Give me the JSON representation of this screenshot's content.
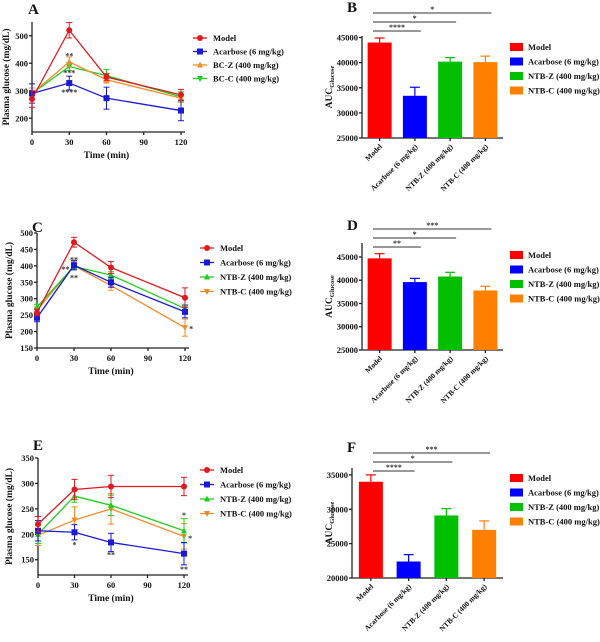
{
  "figure": {
    "colors": {
      "line_model": "#e0191f",
      "line_acarbose": "#1a1ad6",
      "line_orange": "#f08c2a",
      "line_green": "#1fcf1f",
      "bar_model": "#ff0000",
      "bar_acarbose": "#0000ff",
      "bar_ntbz": "#00c000",
      "bar_ntbc": "#ff8000"
    }
  },
  "chart_data": [
    {
      "id": "A",
      "panel_label": "A",
      "type": "line",
      "xlabel": "Time (min)",
      "ylabel": "Plasma glucose (mg/dL)",
      "x": [
        0,
        30,
        60,
        120
      ],
      "xticks": [
        0,
        30,
        60,
        90,
        120
      ],
      "xlim": [
        0,
        120
      ],
      "yticks": [
        200,
        300,
        400,
        500
      ],
      "ylim": [
        150,
        550
      ],
      "legend_position": "right",
      "series": [
        {
          "name": "Model",
          "color_key": "line_model",
          "marker": "circle",
          "values": [
            270,
            520,
            350,
            285
          ],
          "errors": [
            30,
            28,
            12,
            20
          ]
        },
        {
          "name": "Acarbose (6 mg/kg)",
          "color_key": "line_acarbose",
          "marker": "square",
          "values": [
            290,
            328,
            273,
            228
          ],
          "errors": [
            35,
            25,
            40,
            37
          ]
        },
        {
          "name": "BC-Z (400 mg/kg)",
          "color_key": "line_orange",
          "marker": "triangle-up",
          "values": [
            290,
            405,
            340,
            273
          ],
          "errors": [
            20,
            18,
            12,
            15
          ]
        },
        {
          "name": "BC-C (400 mg/kg)",
          "color_key": "line_green",
          "marker": "triangle-down",
          "values": [
            290,
            388,
            355,
            278
          ],
          "errors": [
            20,
            15,
            22,
            18
          ]
        }
      ],
      "annotations": [
        {
          "text": "**",
          "x": 30,
          "y": 428
        },
        {
          "text": "***",
          "x": 30,
          "y": 366
        },
        {
          "text": "****",
          "x": 30,
          "y": 295
        }
      ]
    },
    {
      "id": "B",
      "panel_label": "B",
      "type": "bar",
      "ylabel_main": "AUC",
      "ylabel_sub": "Glucose",
      "categories": [
        "Model",
        "Acarbose (6 mg/kg)",
        "NTB-Z (400 mg/kg)",
        "NTB-C (400 mg/kg)"
      ],
      "values": [
        44000,
        33400,
        40200,
        40100
      ],
      "errors": [
        900,
        1700,
        800,
        1200
      ],
      "color_keys": [
        "bar_model",
        "bar_acarbose",
        "bar_ntbz",
        "bar_ntbc"
      ],
      "yticks": [
        25000,
        30000,
        35000,
        40000,
        45000
      ],
      "ylim": [
        25000,
        45300
      ],
      "legend_position": "right",
      "significance": [
        {
          "from": 0,
          "to": 1,
          "text": "****"
        },
        {
          "from": 0,
          "to": 2,
          "text": "*"
        },
        {
          "from": 0,
          "to": 3,
          "text": "*"
        }
      ]
    },
    {
      "id": "C",
      "panel_label": "C",
      "type": "line",
      "xlabel": "Time (min)",
      "ylabel": "Plasma glucose (mg/dL)",
      "x": [
        0,
        30,
        60,
        120
      ],
      "xticks": [
        0,
        30,
        60,
        90,
        120
      ],
      "xlim": [
        0,
        120
      ],
      "yticks": [
        150,
        200,
        250,
        300,
        350,
        400,
        450,
        500
      ],
      "ylim": [
        150,
        500
      ],
      "legend_position": "right",
      "series": [
        {
          "name": "Model",
          "color_key": "line_model",
          "marker": "circle",
          "values": [
            258,
            472,
            395,
            303
          ],
          "errors": [
            10,
            15,
            18,
            30
          ]
        },
        {
          "name": "Acarbose (6 mg/kg)",
          "color_key": "line_acarbose",
          "marker": "square",
          "values": [
            242,
            402,
            350,
            260
          ],
          "errors": [
            12,
            14,
            15,
            18
          ]
        },
        {
          "name": "NTB-Z (400 mg/kg)",
          "color_key": "line_green",
          "marker": "triangle-up",
          "values": [
            275,
            398,
            372,
            270
          ],
          "errors": [
            8,
            10,
            10,
            12
          ]
        },
        {
          "name": "NTB-C (400 mg/kg)",
          "color_key": "line_orange",
          "marker": "triangle-down",
          "values": [
            265,
            400,
            340,
            212
          ],
          "errors": [
            10,
            12,
            14,
            26
          ]
        }
      ],
      "annotations": [
        {
          "text": "**",
          "x": 30,
          "y": 420
        },
        {
          "text": "**",
          "x": 23,
          "y": 390
        },
        {
          "text": "**",
          "x": 30,
          "y": 365
        },
        {
          "text": "*",
          "x": 125,
          "y": 210
        }
      ]
    },
    {
      "id": "D",
      "panel_label": "D",
      "type": "bar",
      "ylabel_main": "AUC",
      "ylabel_sub": "Glucose",
      "categories": [
        "Model",
        "Acarbose (6 mg/kg)",
        "NTB-Z (400 mg/kg)",
        "NTB-C (400 mg/kg)"
      ],
      "values": [
        44700,
        39600,
        40800,
        37800
      ],
      "errors": [
        1000,
        800,
        900,
        900
      ],
      "color_keys": [
        "bar_model",
        "bar_acarbose",
        "bar_ntbz",
        "bar_ntbc"
      ],
      "yticks": [
        25000,
        30000,
        35000,
        40000,
        45000
      ],
      "ylim": [
        25000,
        48000
      ],
      "legend_position": "right",
      "significance": [
        {
          "from": 0,
          "to": 1,
          "text": "**"
        },
        {
          "from": 0,
          "to": 2,
          "text": "*"
        },
        {
          "from": 0,
          "to": 3,
          "text": "***"
        }
      ]
    },
    {
      "id": "E",
      "panel_label": "E",
      "type": "line",
      "xlabel": "Time (min)",
      "ylabel": "Plasma glucose (mg/dL)",
      "x": [
        0,
        30,
        60,
        120
      ],
      "xticks": [
        0,
        30,
        60,
        90,
        120
      ],
      "xlim": [
        0,
        120
      ],
      "yticks": [
        150,
        200,
        250,
        300,
        350
      ],
      "ylim": [
        120,
        350
      ],
      "legend_position": "right",
      "series": [
        {
          "name": "Model",
          "color_key": "line_model",
          "marker": "circle",
          "values": [
            220,
            288,
            294,
            294
          ],
          "errors": [
            15,
            20,
            22,
            18
          ]
        },
        {
          "name": "Acarbose (6 mg/kg)",
          "color_key": "line_acarbose",
          "marker": "square",
          "values": [
            207,
            204,
            184,
            162
          ],
          "errors": [
            20,
            15,
            18,
            22
          ]
        },
        {
          "name": "NTB-Z (400 mg/kg)",
          "color_key": "line_green",
          "marker": "triangle-up",
          "values": [
            200,
            275,
            257,
            207
          ],
          "errors": [
            18,
            12,
            20,
            24
          ]
        },
        {
          "name": "NTB-C (400 mg/kg)",
          "color_key": "line_orange",
          "marker": "triangle-down",
          "values": [
            198,
            228,
            250,
            196
          ],
          "errors": [
            20,
            26,
            30,
            25
          ]
        }
      ],
      "annotations": [
        {
          "text": "*",
          "x": 30,
          "y": 180
        },
        {
          "text": "**",
          "x": 60,
          "y": 160
        },
        {
          "text": "*",
          "x": 120,
          "y": 238
        },
        {
          "text": "*",
          "x": 125,
          "y": 193
        },
        {
          "text": "**",
          "x": 120,
          "y": 132
        }
      ]
    },
    {
      "id": "F",
      "panel_label": "F",
      "type": "bar",
      "ylabel_main": "AUC",
      "ylabel_sub": "Glucose",
      "categories": [
        "Model",
        "Acarbose (6 mg/kg)",
        "NTB-Z (400 mg/kg)",
        "NTB-C (400 mg/kg)"
      ],
      "values": [
        34000,
        22400,
        29100,
        27000
      ],
      "errors": [
        1000,
        1000,
        1000,
        1300
      ],
      "color_keys": [
        "bar_model",
        "bar_acarbose",
        "bar_ntbz",
        "bar_ntbc"
      ],
      "yticks": [
        20000,
        25000,
        30000,
        35000
      ],
      "ylim": [
        20000,
        36000
      ],
      "legend_position": "right",
      "significance": [
        {
          "from": 0,
          "to": 1,
          "text": "****"
        },
        {
          "from": 0,
          "to": 2,
          "text": "*"
        },
        {
          "from": 0,
          "to": 3,
          "text": "***"
        }
      ]
    }
  ]
}
